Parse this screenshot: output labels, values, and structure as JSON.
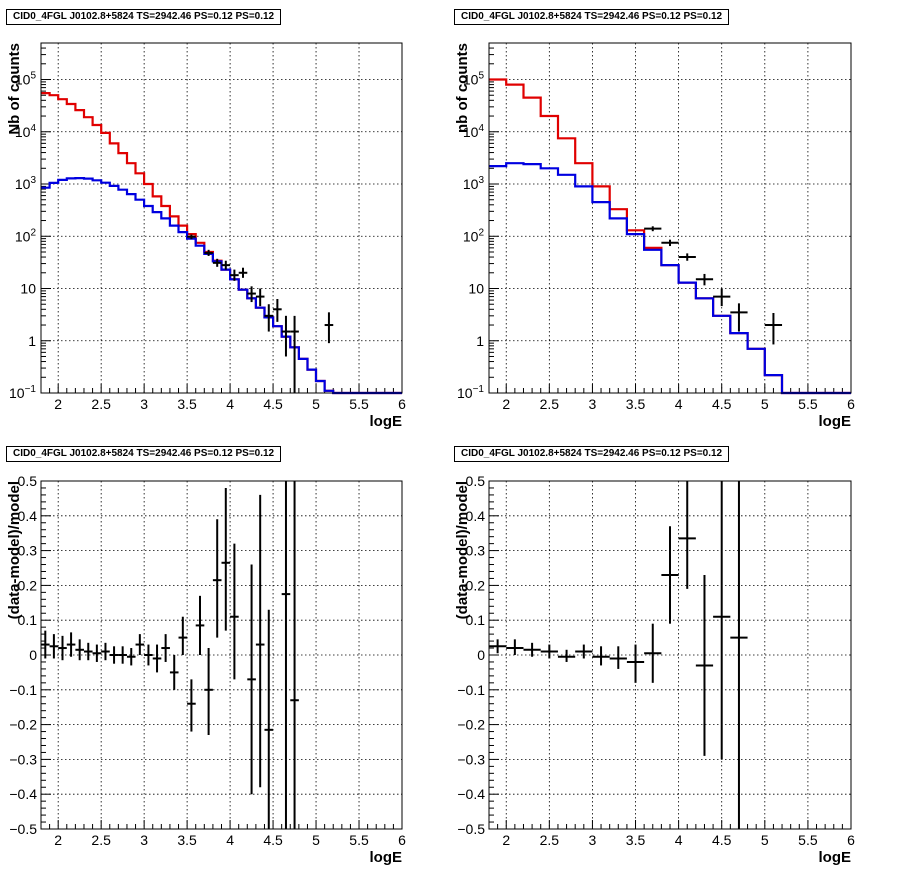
{
  "colors": {
    "data": "#000000",
    "model_total": "#e00000",
    "model_component": "#0000e0",
    "grid": "#000000",
    "background": "#ffffff"
  },
  "chart_data": [
    {
      "type": "step-histogram-log",
      "title": "CID0_4FGL J0102.8+5824 TS=2942.46 PS=0.12 PS=0.12",
      "xlabel": "logE",
      "ylabel": "Nb of counts",
      "xlim": [
        1.8,
        6.0
      ],
      "ylim": [
        0.1,
        500000
      ],
      "yscale": "log",
      "grid": true,
      "x_ticks": [
        "2",
        "2.5",
        "3",
        "3.5",
        "4",
        "4.5",
        "5",
        "5.5",
        "6"
      ],
      "y_ticks": [
        {
          "v": 0.1,
          "t": "10",
          "sup": "−1"
        },
        {
          "v": 1,
          "t": "1"
        },
        {
          "v": 10,
          "t": "10"
        },
        {
          "v": 100,
          "t": "10",
          "sup": "2"
        },
        {
          "v": 1000,
          "t": "10",
          "sup": "3"
        },
        {
          "v": 10000,
          "t": "10",
          "sup": "4"
        },
        {
          "v": 100000,
          "t": "10",
          "sup": "5"
        }
      ],
      "bin_edges": [
        1.8,
        1.9,
        2.0,
        2.1,
        2.2,
        2.3,
        2.4,
        2.5,
        2.6,
        2.7,
        2.8,
        2.9,
        3.0,
        3.1,
        3.2,
        3.3,
        3.4,
        3.5,
        3.6,
        3.7,
        3.8,
        3.9,
        4.0,
        4.1,
        4.2,
        4.3,
        4.4,
        4.5,
        4.6,
        4.7,
        4.8,
        4.9,
        5.0,
        5.1,
        5.2,
        5.3,
        5.4,
        5.5,
        5.6,
        5.7,
        5.8,
        5.9,
        6.0
      ],
      "series": [
        {
          "name": "",
          "color": "#e00000",
          "values": [
            55000,
            50000,
            42000,
            34000,
            26000,
            19000,
            13500,
            9500,
            6000,
            3900,
            2500,
            1600,
            1000,
            580,
            380,
            240,
            160,
            110,
            75,
            50,
            34,
            23,
            15,
            9.5,
            6.5,
            4.3,
            2.8,
            1.9,
            1.2,
            0.75,
            0.45,
            0.28,
            0.17,
            0.11,
            0.1,
            0.1,
            0.1,
            0.1,
            0.1,
            0.1,
            0.1,
            0.1
          ]
        },
        {
          "name": "",
          "color": "#0000e0",
          "values": [
            850,
            1050,
            1200,
            1280,
            1300,
            1270,
            1180,
            1060,
            920,
            780,
            640,
            500,
            380,
            290,
            220,
            160,
            120,
            90,
            66,
            46,
            33,
            23,
            15,
            9.5,
            6.5,
            4.3,
            2.8,
            1.9,
            1.2,
            0.75,
            0.45,
            0.28,
            0.17,
            0.11,
            0.1,
            0.1,
            0.1,
            0.1,
            0.1,
            0.1,
            0.1,
            0.1
          ]
        }
      ],
      "data_points": [
        {
          "x": 3.55,
          "y": 98,
          "xerr": 0.05,
          "ylo": 88,
          "yhi": 108
        },
        {
          "x": 3.75,
          "y": 48,
          "xerr": 0.05,
          "ylo": 42,
          "yhi": 55
        },
        {
          "x": 3.85,
          "y": 31,
          "xerr": 0.05,
          "ylo": 26,
          "yhi": 37
        },
        {
          "x": 3.95,
          "y": 28,
          "xerr": 0.05,
          "ylo": 23,
          "yhi": 34
        },
        {
          "x": 4.05,
          "y": 18,
          "xerr": 0.05,
          "ylo": 14,
          "yhi": 23
        },
        {
          "x": 4.15,
          "y": 20,
          "xerr": 0.05,
          "ylo": 16,
          "yhi": 25
        },
        {
          "x": 4.25,
          "y": 8,
          "xerr": 0.05,
          "ylo": 5.5,
          "yhi": 11
        },
        {
          "x": 4.35,
          "y": 7,
          "xerr": 0.05,
          "ylo": 4.6,
          "yhi": 10
        },
        {
          "x": 4.45,
          "y": 3,
          "xerr": 0.05,
          "ylo": 1.5,
          "yhi": 5
        },
        {
          "x": 4.55,
          "y": 4,
          "xerr": 0.05,
          "ylo": 2.3,
          "yhi": 6.3
        },
        {
          "x": 4.65,
          "y": 1.5,
          "xerr": 0.05,
          "ylo": 0.5,
          "yhi": 3
        },
        {
          "x": 4.75,
          "y": 1.5,
          "xerr": 0.05,
          "ylo": 0.1,
          "yhi": 3
        },
        {
          "x": 5.15,
          "y": 2,
          "xerr": 0.05,
          "ylo": 0.9,
          "yhi": 3.5
        }
      ]
    },
    {
      "type": "step-histogram-log",
      "title": "CID0_4FGL J0102.8+5824 TS=2942.46 PS=0.12 PS=0.12",
      "xlabel": "logE",
      "ylabel": "nb of counts",
      "xlim": [
        1.8,
        6.0
      ],
      "ylim": [
        0.1,
        500000
      ],
      "yscale": "log",
      "grid": true,
      "x_ticks": [
        "2",
        "2.5",
        "3",
        "3.5",
        "4",
        "4.5",
        "5",
        "5.5",
        "6"
      ],
      "y_ticks": [
        {
          "v": 0.1,
          "t": "10",
          "sup": "−1"
        },
        {
          "v": 1,
          "t": "1"
        },
        {
          "v": 10,
          "t": "10"
        },
        {
          "v": 100,
          "t": "10",
          "sup": "2"
        },
        {
          "v": 1000,
          "t": "10",
          "sup": "3"
        },
        {
          "v": 10000,
          "t": "10",
          "sup": "4"
        },
        {
          "v": 100000,
          "t": "10",
          "sup": "5"
        }
      ],
      "bin_edges": [
        1.8,
        2.0,
        2.2,
        2.4,
        2.6,
        2.8,
        3.0,
        3.2,
        3.4,
        3.6,
        3.8,
        4.0,
        4.2,
        4.4,
        4.6,
        4.8,
        5.0,
        5.2,
        5.4,
        5.6,
        5.8,
        6.0
      ],
      "series": [
        {
          "name": "",
          "color": "#e00000",
          "values": [
            100000,
            80000,
            45000,
            20000,
            7500,
            2500,
            900,
            330,
            130,
            60,
            28,
            13,
            6.5,
            3,
            1.4,
            0.7,
            0.22,
            0.1,
            0.1,
            0.1,
            0.1
          ]
        },
        {
          "name": "",
          "color": "#0000e0",
          "values": [
            2200,
            2500,
            2400,
            2000,
            1500,
            900,
            450,
            220,
            110,
            55,
            28,
            13,
            6.5,
            3,
            1.4,
            0.7,
            0.22,
            0.1,
            0.1,
            0.1,
            0.1
          ]
        }
      ],
      "data_points": [
        {
          "x": 3.7,
          "y": 140,
          "xerr": 0.1,
          "ylo": 125,
          "yhi": 155
        },
        {
          "x": 3.9,
          "y": 75,
          "xerr": 0.1,
          "ylo": 65,
          "yhi": 86
        },
        {
          "x": 4.1,
          "y": 40,
          "xerr": 0.1,
          "ylo": 34,
          "yhi": 47
        },
        {
          "x": 4.3,
          "y": 15,
          "xerr": 0.1,
          "ylo": 11.5,
          "yhi": 19
        },
        {
          "x": 4.5,
          "y": 7,
          "xerr": 0.1,
          "ylo": 4.6,
          "yhi": 10
        },
        {
          "x": 4.7,
          "y": 3.5,
          "xerr": 0.1,
          "ylo": 1.5,
          "yhi": 5.2
        },
        {
          "x": 5.1,
          "y": 2,
          "xerr": 0.1,
          "ylo": 0.85,
          "yhi": 3.4
        }
      ]
    },
    {
      "type": "scatter-errorbars",
      "title": "CID0_4FGL J0102.8+5824 TS=2942.46 PS=0.12 PS=0.12",
      "xlabel": "logE",
      "ylabel": "(data-model)/model",
      "xlim": [
        1.8,
        6.0
      ],
      "ylim": [
        -0.5,
        0.5
      ],
      "grid": true,
      "x_ticks": [
        "2",
        "2.5",
        "3",
        "3.5",
        "4",
        "4.5",
        "5",
        "5.5",
        "6"
      ],
      "y_ticks": [
        "−0.5",
        "−0.4",
        "−0.3",
        "−0.2",
        "−0.1",
        "0",
        "0.1",
        "0.2",
        "0.3",
        "0.4",
        "0.5"
      ],
      "data_points": [
        {
          "x": 1.85,
          "y": 0.03,
          "xerr": 0.05,
          "ylo": -0.01,
          "yhi": 0.07
        },
        {
          "x": 1.95,
          "y": 0.025,
          "xerr": 0.05,
          "ylo": -0.01,
          "yhi": 0.06
        },
        {
          "x": 2.05,
          "y": 0.02,
          "xerr": 0.05,
          "ylo": -0.015,
          "yhi": 0.055
        },
        {
          "x": 2.15,
          "y": 0.03,
          "xerr": 0.05,
          "ylo": -0.005,
          "yhi": 0.065
        },
        {
          "x": 2.25,
          "y": 0.015,
          "xerr": 0.05,
          "ylo": -0.015,
          "yhi": 0.045
        },
        {
          "x": 2.35,
          "y": 0.01,
          "xerr": 0.05,
          "ylo": -0.015,
          "yhi": 0.035
        },
        {
          "x": 2.45,
          "y": 0.005,
          "xerr": 0.05,
          "ylo": -0.02,
          "yhi": 0.03
        },
        {
          "x": 2.55,
          "y": 0.01,
          "xerr": 0.05,
          "ylo": -0.015,
          "yhi": 0.035
        },
        {
          "x": 2.65,
          "y": 0.0,
          "xerr": 0.05,
          "ylo": -0.025,
          "yhi": 0.025
        },
        {
          "x": 2.75,
          "y": 0.0,
          "xerr": 0.05,
          "ylo": -0.025,
          "yhi": 0.025
        },
        {
          "x": 2.85,
          "y": -0.005,
          "xerr": 0.05,
          "ylo": -0.03,
          "yhi": 0.02
        },
        {
          "x": 2.95,
          "y": 0.03,
          "xerr": 0.05,
          "ylo": 0.0,
          "yhi": 0.06
        },
        {
          "x": 3.05,
          "y": 0.0,
          "xerr": 0.05,
          "ylo": -0.03,
          "yhi": 0.03
        },
        {
          "x": 3.15,
          "y": -0.01,
          "xerr": 0.05,
          "ylo": -0.05,
          "yhi": 0.03
        },
        {
          "x": 3.25,
          "y": 0.02,
          "xerr": 0.05,
          "ylo": -0.02,
          "yhi": 0.06
        },
        {
          "x": 3.35,
          "y": -0.05,
          "xerr": 0.05,
          "ylo": -0.1,
          "yhi": 0.0
        },
        {
          "x": 3.45,
          "y": 0.05,
          "xerr": 0.05,
          "ylo": 0.0,
          "yhi": 0.11
        },
        {
          "x": 3.55,
          "y": -0.14,
          "xerr": 0.05,
          "ylo": -0.22,
          "yhi": -0.07
        },
        {
          "x": 3.65,
          "y": 0.085,
          "xerr": 0.05,
          "ylo": 0.0,
          "yhi": 0.17
        },
        {
          "x": 3.75,
          "y": -0.1,
          "xerr": 0.05,
          "ylo": -0.23,
          "yhi": 0.02
        },
        {
          "x": 3.85,
          "y": 0.215,
          "xerr": 0.05,
          "ylo": 0.05,
          "yhi": 0.39
        },
        {
          "x": 3.95,
          "y": 0.265,
          "xerr": 0.05,
          "ylo": 0.07,
          "yhi": 0.48
        },
        {
          "x": 4.05,
          "y": 0.11,
          "xerr": 0.05,
          "ylo": -0.07,
          "yhi": 0.32
        },
        {
          "x": 4.25,
          "y": -0.07,
          "xerr": 0.05,
          "ylo": -0.4,
          "yhi": 0.26
        },
        {
          "x": 4.35,
          "y": 0.03,
          "xerr": 0.05,
          "ylo": -0.38,
          "yhi": 0.46
        },
        {
          "x": 4.45,
          "y": -0.215,
          "xerr": 0.05,
          "ylo": -0.5,
          "yhi": 0.13
        },
        {
          "x": 4.65,
          "y": 0.175,
          "xerr": 0.05,
          "ylo": -0.5,
          "yhi": 0.5
        },
        {
          "x": 4.75,
          "y": -0.13,
          "xerr": 0.05,
          "ylo": -0.5,
          "yhi": 0.5
        }
      ]
    },
    {
      "type": "scatter-errorbars",
      "title": "CID0_4FGL J0102.8+5824 TS=2942.46 PS=0.12 PS=0.12",
      "xlabel": "logE",
      "ylabel": "(data-model)/model",
      "xlim": [
        1.8,
        6.0
      ],
      "ylim": [
        -0.5,
        0.5
      ],
      "grid": true,
      "x_ticks": [
        "2",
        "2.5",
        "3",
        "3.5",
        "4",
        "4.5",
        "5",
        "5.5",
        "6"
      ],
      "y_ticks": [
        "−0.5",
        "−0.4",
        "−0.3",
        "−0.2",
        "−0.1",
        "0",
        "0.1",
        "0.2",
        "0.3",
        "0.4",
        "0.5"
      ],
      "data_points": [
        {
          "x": 1.9,
          "y": 0.025,
          "xerr": 0.1,
          "ylo": 0.005,
          "yhi": 0.045
        },
        {
          "x": 2.1,
          "y": 0.02,
          "xerr": 0.1,
          "ylo": 0.0,
          "yhi": 0.045
        },
        {
          "x": 2.3,
          "y": 0.015,
          "xerr": 0.1,
          "ylo": -0.005,
          "yhi": 0.035
        },
        {
          "x": 2.5,
          "y": 0.01,
          "xerr": 0.1,
          "ylo": -0.01,
          "yhi": 0.03
        },
        {
          "x": 2.7,
          "y": -0.005,
          "xerr": 0.1,
          "ylo": -0.02,
          "yhi": 0.015
        },
        {
          "x": 2.9,
          "y": 0.01,
          "xerr": 0.1,
          "ylo": -0.01,
          "yhi": 0.03
        },
        {
          "x": 3.1,
          "y": -0.005,
          "xerr": 0.1,
          "ylo": -0.03,
          "yhi": 0.025
        },
        {
          "x": 3.3,
          "y": -0.01,
          "xerr": 0.1,
          "ylo": -0.04,
          "yhi": 0.025
        },
        {
          "x": 3.5,
          "y": -0.02,
          "xerr": 0.1,
          "ylo": -0.08,
          "yhi": 0.03
        },
        {
          "x": 3.7,
          "y": 0.005,
          "xerr": 0.1,
          "ylo": -0.08,
          "yhi": 0.09
        },
        {
          "x": 3.9,
          "y": 0.23,
          "xerr": 0.1,
          "ylo": 0.09,
          "yhi": 0.37
        },
        {
          "x": 4.1,
          "y": 0.335,
          "xerr": 0.1,
          "ylo": 0.19,
          "yhi": 0.5
        },
        {
          "x": 4.3,
          "y": -0.03,
          "xerr": 0.1,
          "ylo": -0.29,
          "yhi": 0.23
        },
        {
          "x": 4.5,
          "y": 0.11,
          "xerr": 0.1,
          "ylo": -0.3,
          "yhi": 0.5
        },
        {
          "x": 4.7,
          "y": 0.05,
          "xerr": 0.1,
          "ylo": -0.5,
          "yhi": 0.5
        }
      ]
    }
  ]
}
